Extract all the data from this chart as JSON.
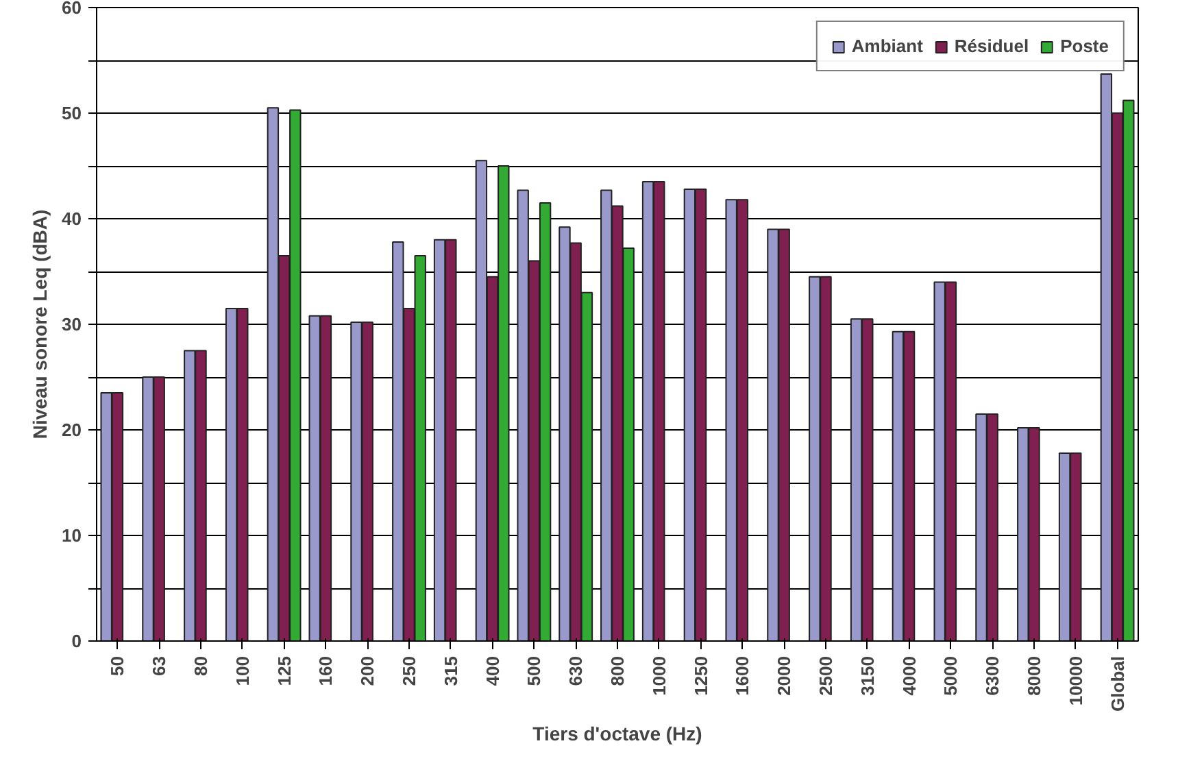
{
  "chart_data": {
    "type": "bar",
    "xlabel": "Tiers d'octave (Hz)",
    "ylabel": "Niveau sonore Leq (dBA)",
    "categories": [
      "50",
      "63",
      "80",
      "100",
      "125",
      "160",
      "200",
      "250",
      "315",
      "400",
      "500",
      "630",
      "800",
      "1000",
      "1250",
      "1600",
      "2000",
      "2500",
      "3150",
      "4000",
      "5000",
      "6300",
      "8000",
      "10000",
      "Global"
    ],
    "series": [
      {
        "name": "Ambiant",
        "color": "#9999cc",
        "values": [
          23.5,
          25,
          27.5,
          31.5,
          50.5,
          30.8,
          30.2,
          37.8,
          38,
          45.5,
          42.7,
          39.2,
          42.7,
          43.5,
          42.8,
          41.8,
          39,
          34.5,
          30.5,
          29.3,
          34,
          21.5,
          20.2,
          17.8,
          53.7
        ]
      },
      {
        "name": "Résiduel",
        "color": "#802050",
        "values": [
          23.5,
          25,
          27.5,
          31.5,
          36.5,
          30.8,
          30.2,
          31.5,
          38,
          34.5,
          36,
          37.7,
          41.2,
          43.5,
          42.8,
          41.8,
          39,
          34.5,
          30.5,
          29.3,
          34,
          21.5,
          20.2,
          17.8,
          50
        ]
      },
      {
        "name": "Poste",
        "color": "#33aa33",
        "values": [
          null,
          null,
          null,
          null,
          50.3,
          null,
          null,
          36.5,
          null,
          45,
          41.5,
          33,
          37.2,
          null,
          null,
          null,
          null,
          null,
          null,
          null,
          null,
          null,
          null,
          null,
          51.2
        ]
      }
    ],
    "ylim": [
      0,
      60
    ],
    "yticks": [
      0,
      {
        "value": 5,
        "label": null
      },
      10,
      {
        "value": 15,
        "label": null
      },
      20,
      {
        "value": 25,
        "label": null
      },
      30,
      {
        "value": 35,
        "label": null
      },
      40,
      {
        "value": 45,
        "label": null
      },
      50,
      {
        "value": 55,
        "label": null
      },
      60
    ],
    "grid": "y",
    "legend": "top right"
  }
}
